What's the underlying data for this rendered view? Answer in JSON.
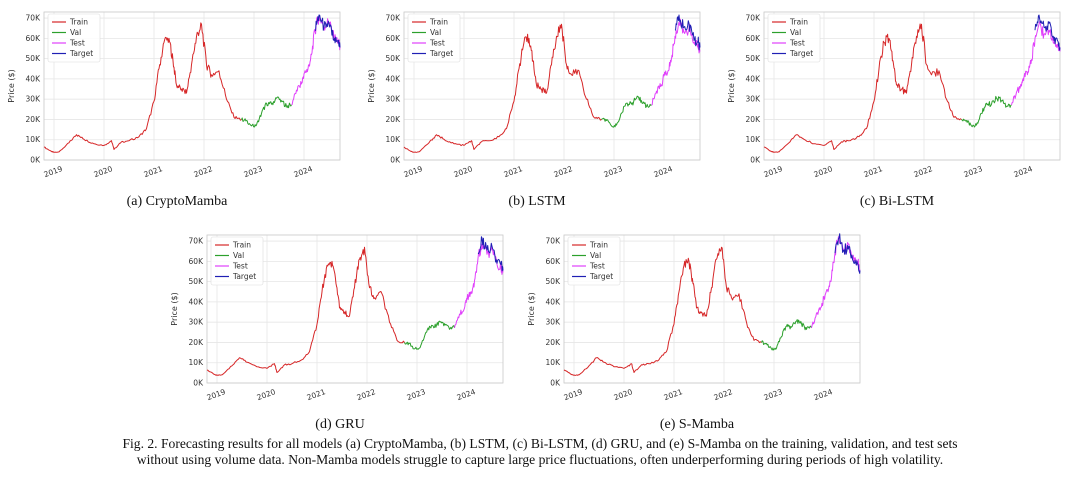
{
  "figure_caption": {
    "line1": "Fig. 2.  Forecasting results for all models (a) CryptoMamba, (b) LSTM, (c) Bi-LSTM, (d) GRU, and (e) S-Mamba on the training, validation, and test sets",
    "line2": "without using volume data. Non-Mamba models struggle to capture large price fluctuations, often underperforming during periods of high volatility."
  },
  "colors": {
    "train": "#d62728",
    "val": "#2ca02c",
    "test": "#e040fb",
    "target": "#1f1fb4",
    "grid": "#e6e6e6",
    "axis": "#c8c8c8"
  },
  "chart_data": [
    {
      "type": "line",
      "caption": "(a) CryptoMamba",
      "ylabel": "Price ($)",
      "ylim": [
        0,
        73000
      ],
      "xlim": [
        2018.8,
        2024.72
      ],
      "yticks": [
        0,
        10000,
        20000,
        30000,
        40000,
        50000,
        60000,
        70000
      ],
      "ytick_labels": [
        "0K",
        "10K",
        "20K",
        "30K",
        "40K",
        "50K",
        "60K",
        "70K"
      ],
      "xticks": [
        2019,
        2020,
        2021,
        2022,
        2023,
        2024
      ],
      "xtick_labels": [
        "2019",
        "2020",
        "2021",
        "2022",
        "2023",
        "2024"
      ],
      "legend": [
        "Train",
        "Val",
        "Test",
        "Target"
      ],
      "legend_position": "top-left",
      "series": [
        {
          "name": "Train",
          "x": [
            2018.8,
            2018.95,
            2019.0,
            2019.1,
            2019.3,
            2019.45,
            2019.6,
            2019.8,
            2020.0,
            2020.15,
            2020.2,
            2020.35,
            2020.5,
            2020.7,
            2020.85,
            2021.0,
            2021.1,
            2021.2,
            2021.3,
            2021.38,
            2021.45,
            2021.55,
            2021.65,
            2021.75,
            2021.85,
            2021.95,
            2022.05,
            2022.15,
            2022.3,
            2022.45,
            2022.6,
            2022.75
          ],
          "values": [
            6400,
            4200,
            3800,
            4000,
            8500,
            12500,
            10200,
            8000,
            7200,
            9500,
            5200,
            9000,
            9500,
            11500,
            15500,
            29000,
            45000,
            58000,
            60000,
            49000,
            37000,
            35000,
            33000,
            47000,
            61000,
            67000,
            47000,
            42000,
            44000,
            30000,
            21000,
            20000
          ]
        },
        {
          "name": "Val",
          "x": [
            2022.75,
            2022.85,
            2022.95,
            2023.05,
            2023.15,
            2023.25,
            2023.35,
            2023.45,
            2023.55,
            2023.65,
            2023.75
          ],
          "values": [
            20000,
            19500,
            16800,
            17200,
            23000,
            28000,
            27500,
            30500,
            29300,
            26500,
            27200
          ]
        },
        {
          "name": "Test",
          "x": [
            2023.75,
            2023.85,
            2023.95,
            2024.0,
            2024.08,
            2024.15,
            2024.22,
            2024.3,
            2024.4,
            2024.5,
            2024.6,
            2024.68,
            2024.72
          ],
          "values": [
            27200,
            34500,
            37500,
            42500,
            45000,
            52000,
            64000,
            71000,
            66000,
            68000,
            60000,
            59000,
            56000
          ]
        },
        {
          "name": "Target",
          "x": [
            2024.22,
            2024.3,
            2024.4,
            2024.5,
            2024.6,
            2024.68,
            2024.72
          ],
          "values": [
            64000,
            71500,
            65500,
            67500,
            59000,
            58500,
            55500
          ]
        }
      ]
    },
    {
      "type": "line",
      "caption": "(b) LSTM",
      "ylabel": "Price ($)",
      "ylim": [
        0,
        73000
      ],
      "xlim": [
        2018.8,
        2024.72
      ],
      "yticks": [
        0,
        10000,
        20000,
        30000,
        40000,
        50000,
        60000,
        70000
      ],
      "ytick_labels": [
        "0K",
        "10K",
        "20K",
        "30K",
        "40K",
        "50K",
        "60K",
        "70K"
      ],
      "xticks": [
        2019,
        2020,
        2021,
        2022,
        2023,
        2024
      ],
      "xtick_labels": [
        "2019",
        "2020",
        "2021",
        "2022",
        "2023",
        "2024"
      ],
      "legend": [
        "Train",
        "Val",
        "Test",
        "Target"
      ],
      "legend_position": "top-left",
      "series": [
        {
          "name": "Train",
          "x": [
            2018.8,
            2018.95,
            2019.0,
            2019.1,
            2019.3,
            2019.45,
            2019.6,
            2019.8,
            2020.0,
            2020.15,
            2020.2,
            2020.35,
            2020.5,
            2020.7,
            2020.85,
            2021.0,
            2021.1,
            2021.2,
            2021.3,
            2021.38,
            2021.45,
            2021.55,
            2021.65,
            2021.75,
            2021.85,
            2021.95,
            2022.05,
            2022.15,
            2022.3,
            2022.45,
            2022.6,
            2022.75
          ],
          "values": [
            6400,
            4200,
            3800,
            4000,
            8500,
            12500,
            10200,
            8000,
            7200,
            9500,
            5200,
            9000,
            9500,
            11500,
            15500,
            29000,
            45000,
            58000,
            60000,
            49000,
            37000,
            35000,
            33000,
            47000,
            61000,
            67000,
            47000,
            42000,
            44000,
            30000,
            21000,
            20000
          ]
        },
        {
          "name": "Val",
          "x": [
            2022.75,
            2022.85,
            2022.95,
            2023.05,
            2023.15,
            2023.25,
            2023.35,
            2023.45,
            2023.55,
            2023.65,
            2023.75
          ],
          "values": [
            20000,
            19500,
            16800,
            17200,
            23000,
            28000,
            27500,
            30500,
            29300,
            26500,
            27200
          ]
        },
        {
          "name": "Test",
          "x": [
            2023.75,
            2023.85,
            2023.95,
            2024.0,
            2024.08,
            2024.15,
            2024.22,
            2024.3,
            2024.4,
            2024.5,
            2024.6,
            2024.68,
            2024.72
          ],
          "values": [
            27200,
            34000,
            37000,
            41500,
            44000,
            50000,
            61000,
            68000,
            63000,
            65000,
            58000,
            57000,
            54000
          ]
        },
        {
          "name": "Target",
          "x": [
            2024.22,
            2024.3,
            2024.4,
            2024.5,
            2024.6,
            2024.68,
            2024.72
          ],
          "values": [
            64000,
            71500,
            65500,
            67500,
            59000,
            58500,
            55500
          ]
        }
      ]
    },
    {
      "type": "line",
      "caption": "(c) Bi-LSTM",
      "ylabel": "Price ($)",
      "ylim": [
        0,
        73000
      ],
      "xlim": [
        2018.8,
        2024.72
      ],
      "yticks": [
        0,
        10000,
        20000,
        30000,
        40000,
        50000,
        60000,
        70000
      ],
      "ytick_labels": [
        "0K",
        "10K",
        "20K",
        "30K",
        "40K",
        "50K",
        "60K",
        "70K"
      ],
      "xticks": [
        2019,
        2020,
        2021,
        2022,
        2023,
        2024
      ],
      "xtick_labels": [
        "2019",
        "2020",
        "2021",
        "2022",
        "2023",
        "2024"
      ],
      "legend": [
        "Train",
        "Val",
        "Test",
        "Target"
      ],
      "legend_position": "top-left",
      "series": [
        {
          "name": "Train",
          "x": [
            2018.8,
            2018.95,
            2019.0,
            2019.1,
            2019.3,
            2019.45,
            2019.6,
            2019.8,
            2020.0,
            2020.15,
            2020.2,
            2020.35,
            2020.5,
            2020.7,
            2020.85,
            2021.0,
            2021.1,
            2021.2,
            2021.3,
            2021.38,
            2021.45,
            2021.55,
            2021.65,
            2021.75,
            2021.85,
            2021.95,
            2022.05,
            2022.15,
            2022.3,
            2022.45,
            2022.6,
            2022.75
          ],
          "values": [
            6400,
            4200,
            3800,
            4000,
            8500,
            12500,
            10200,
            8000,
            7200,
            9500,
            5200,
            9000,
            9500,
            11500,
            15500,
            29000,
            45000,
            58000,
            60000,
            49000,
            37000,
            35000,
            33000,
            47000,
            61000,
            67000,
            47000,
            42000,
            44000,
            30000,
            21000,
            20000
          ]
        },
        {
          "name": "Val",
          "x": [
            2022.75,
            2022.85,
            2022.95,
            2023.05,
            2023.15,
            2023.25,
            2023.35,
            2023.45,
            2023.55,
            2023.65,
            2023.75
          ],
          "values": [
            20000,
            19500,
            16800,
            17200,
            23000,
            28000,
            27500,
            30500,
            29300,
            26500,
            27200
          ]
        },
        {
          "name": "Test",
          "x": [
            2023.75,
            2023.85,
            2023.95,
            2024.0,
            2024.08,
            2024.15,
            2024.22,
            2024.3,
            2024.4,
            2024.5,
            2024.6,
            2024.68,
            2024.72
          ],
          "values": [
            27200,
            33500,
            36500,
            41000,
            43500,
            49500,
            60000,
            67000,
            62000,
            64000,
            57500,
            56500,
            53500
          ]
        },
        {
          "name": "Target",
          "x": [
            2024.22,
            2024.3,
            2024.4,
            2024.5,
            2024.6,
            2024.68,
            2024.72
          ],
          "values": [
            64000,
            71500,
            65500,
            67500,
            59000,
            58500,
            55500
          ]
        }
      ]
    },
    {
      "type": "line",
      "caption": "(d) GRU",
      "ylabel": "Price ($)",
      "ylim": [
        0,
        73000
      ],
      "xlim": [
        2018.8,
        2024.72
      ],
      "yticks": [
        0,
        10000,
        20000,
        30000,
        40000,
        50000,
        60000,
        70000
      ],
      "ytick_labels": [
        "0K",
        "10K",
        "20K",
        "30K",
        "40K",
        "50K",
        "60K",
        "70K"
      ],
      "xticks": [
        2019,
        2020,
        2021,
        2022,
        2023,
        2024
      ],
      "xtick_labels": [
        "2019",
        "2020",
        "2021",
        "2022",
        "2023",
        "2024"
      ],
      "legend": [
        "Train",
        "Val",
        "Test",
        "Target"
      ],
      "legend_position": "top-left",
      "series": [
        {
          "name": "Train",
          "x": [
            2018.8,
            2018.95,
            2019.0,
            2019.1,
            2019.3,
            2019.45,
            2019.6,
            2019.8,
            2020.0,
            2020.15,
            2020.2,
            2020.35,
            2020.5,
            2020.7,
            2020.85,
            2021.0,
            2021.1,
            2021.2,
            2021.3,
            2021.38,
            2021.45,
            2021.55,
            2021.65,
            2021.75,
            2021.85,
            2021.95,
            2022.05,
            2022.15,
            2022.3,
            2022.45,
            2022.6,
            2022.75
          ],
          "values": [
            6400,
            4200,
            3800,
            4000,
            8500,
            12500,
            10200,
            8000,
            7200,
            9500,
            5200,
            9000,
            9500,
            11500,
            15500,
            29000,
            45000,
            58000,
            60000,
            49000,
            37000,
            35000,
            33000,
            47000,
            61000,
            67000,
            47000,
            42000,
            44000,
            30000,
            21000,
            20000
          ]
        },
        {
          "name": "Val",
          "x": [
            2022.75,
            2022.85,
            2022.95,
            2023.05,
            2023.15,
            2023.25,
            2023.35,
            2023.45,
            2023.55,
            2023.65,
            2023.75
          ],
          "values": [
            20000,
            19500,
            16800,
            17200,
            23000,
            28000,
            27500,
            30500,
            29300,
            26500,
            27200
          ]
        },
        {
          "name": "Test",
          "x": [
            2023.75,
            2023.85,
            2023.95,
            2024.0,
            2024.08,
            2024.15,
            2024.22,
            2024.3,
            2024.4,
            2024.5,
            2024.6,
            2024.68,
            2024.72
          ],
          "values": [
            27200,
            34000,
            37000,
            41500,
            44000,
            50500,
            61500,
            68500,
            63500,
            65500,
            58500,
            57000,
            54500
          ]
        },
        {
          "name": "Target",
          "x": [
            2024.22,
            2024.3,
            2024.4,
            2024.5,
            2024.6,
            2024.68,
            2024.72
          ],
          "values": [
            64000,
            71500,
            65500,
            67500,
            59000,
            58500,
            55500
          ]
        }
      ]
    },
    {
      "type": "line",
      "caption": "(e) S-Mamba",
      "ylabel": "Price ($)",
      "ylim": [
        0,
        73000
      ],
      "xlim": [
        2018.8,
        2024.72
      ],
      "yticks": [
        0,
        10000,
        20000,
        30000,
        40000,
        50000,
        60000,
        70000
      ],
      "ytick_labels": [
        "0K",
        "10K",
        "20K",
        "30K",
        "40K",
        "50K",
        "60K",
        "70K"
      ],
      "xticks": [
        2019,
        2020,
        2021,
        2022,
        2023,
        2024
      ],
      "xtick_labels": [
        "2019",
        "2020",
        "2021",
        "2022",
        "2023",
        "2024"
      ],
      "legend": [
        "Train",
        "Val",
        "Test",
        "Target"
      ],
      "legend_position": "top-left",
      "series": [
        {
          "name": "Train",
          "x": [
            2018.8,
            2018.95,
            2019.0,
            2019.1,
            2019.3,
            2019.45,
            2019.6,
            2019.8,
            2020.0,
            2020.15,
            2020.2,
            2020.35,
            2020.5,
            2020.7,
            2020.85,
            2021.0,
            2021.1,
            2021.2,
            2021.3,
            2021.38,
            2021.45,
            2021.55,
            2021.65,
            2021.75,
            2021.85,
            2021.95,
            2022.05,
            2022.15,
            2022.3,
            2022.45,
            2022.6,
            2022.75
          ],
          "values": [
            6400,
            4200,
            3800,
            4000,
            8500,
            12500,
            10200,
            8000,
            7200,
            9500,
            5200,
            9000,
            9500,
            11500,
            15500,
            29000,
            45000,
            58000,
            60000,
            49000,
            37000,
            35000,
            33000,
            47000,
            61000,
            67000,
            47000,
            42000,
            44000,
            30000,
            21000,
            20000
          ]
        },
        {
          "name": "Val",
          "x": [
            2022.75,
            2022.85,
            2022.95,
            2023.05,
            2023.15,
            2023.25,
            2023.35,
            2023.45,
            2023.55,
            2023.65,
            2023.75
          ],
          "values": [
            20000,
            19500,
            16800,
            17200,
            23000,
            28000,
            27500,
            30500,
            29300,
            26500,
            27200
          ]
        },
        {
          "name": "Test",
          "x": [
            2023.75,
            2023.85,
            2023.95,
            2024.0,
            2024.08,
            2024.15,
            2024.22,
            2024.3,
            2024.4,
            2024.5,
            2024.6,
            2024.68,
            2024.72
          ],
          "values": [
            27200,
            34500,
            37500,
            42500,
            45000,
            52000,
            64000,
            72000,
            66000,
            68500,
            60000,
            59000,
            56000
          ]
        },
        {
          "name": "Target",
          "x": [
            2024.22,
            2024.3,
            2024.4,
            2024.5,
            2024.6,
            2024.68,
            2024.72
          ],
          "values": [
            64000,
            71500,
            65500,
            67500,
            59000,
            58500,
            55500
          ]
        }
      ]
    }
  ]
}
